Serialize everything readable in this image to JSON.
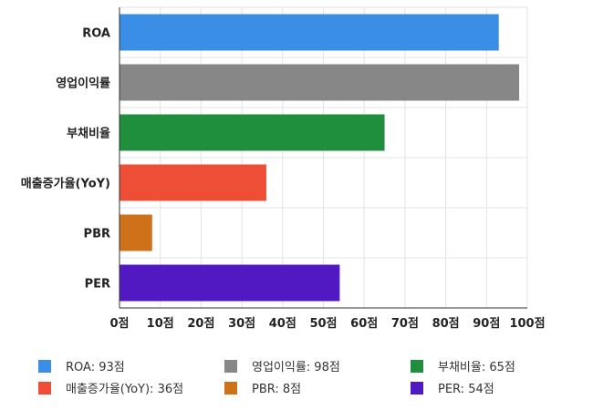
{
  "chart_data": {
    "type": "bar",
    "orientation": "horizontal",
    "categories": [
      "ROA",
      "영업이익률",
      "부채비율",
      "매출증가율(YoY)",
      "PBR",
      "PER"
    ],
    "values": [
      93,
      98,
      65,
      36,
      8,
      54
    ],
    "colors": [
      "#3a8ee6",
      "#878787",
      "#1f8e3d",
      "#ee4e35",
      "#cf7118",
      "#5119c2"
    ],
    "x_ticks": [
      0,
      10,
      20,
      30,
      40,
      50,
      60,
      70,
      80,
      90,
      100
    ],
    "x_tick_suffix": "점",
    "xlim": [
      0,
      100
    ],
    "grid": true,
    "legend_position": "bottom",
    "legend": [
      {
        "label": "ROA: 93점",
        "color": "#3a8ee6"
      },
      {
        "label": "영업이익률: 98점",
        "color": "#878787"
      },
      {
        "label": "부채비율: 65점",
        "color": "#1f8e3d"
      },
      {
        "label": "매출증가율(YoY): 36점",
        "color": "#ee4e35"
      },
      {
        "label": "PBR: 8점",
        "color": "#cf7118"
      },
      {
        "label": "PER: 54점",
        "color": "#5119c2"
      }
    ]
  }
}
